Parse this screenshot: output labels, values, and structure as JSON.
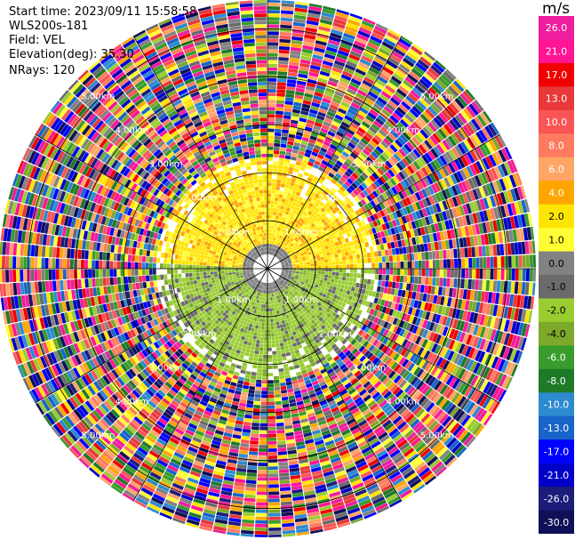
{
  "header": {
    "start_time": "Start time: 2023/09/11 15:58:58",
    "instrument": "WLS200s-181",
    "field": "Field: VEL",
    "elevation": "Elevation(deg): 35.30",
    "nrays": "NRays: 120"
  },
  "chart_data": {
    "type": "heatmap",
    "subtype": "ppi-polar",
    "field": "VEL",
    "units": "m/s",
    "elevation_deg": 35.3,
    "nrays": 120,
    "range_rings_km": [
      1.0,
      2.0,
      3.0,
      4.0,
      5.0
    ],
    "range_ring_labels": [
      "1.00km",
      "2.00km",
      "3.00km",
      "4.00km",
      "5.00km"
    ],
    "max_range_km": 5.6,
    "grid": true,
    "colorbar": {
      "label": "m/s",
      "ticks": [
        "26.0",
        "21.0",
        "17.0",
        "13.0",
        "10.0",
        "8.0",
        "6.0",
        "4.0",
        "2.0",
        "1.0",
        "0.0",
        "-1.0",
        "-2.0",
        "-4.0",
        "-6.0",
        "-8.0",
        "-10.0",
        "-13.0",
        "-17.0",
        "-21.0",
        "-26.0",
        "-30.0"
      ],
      "bins": [
        {
          "color": "#ee1e9e"
        },
        {
          "color": "#ff1493"
        },
        {
          "color": "#f00000"
        },
        {
          "color": "#e8383a"
        },
        {
          "color": "#fa5454"
        },
        {
          "color": "#ff7b60"
        },
        {
          "color": "#ffa566"
        },
        {
          "color": "#ffa500"
        },
        {
          "color": "#ffe400"
        },
        {
          "color": "#ffff33"
        },
        {
          "color": "#828282"
        },
        {
          "color": "#6b6b6b"
        },
        {
          "color": "#9acd32"
        },
        {
          "color": "#7ca82b"
        },
        {
          "color": "#389c2c"
        },
        {
          "color": "#1e7a27"
        },
        {
          "color": "#2c8ad0"
        },
        {
          "color": "#1864c8"
        },
        {
          "color": "#0000ff"
        },
        {
          "color": "#0000c8"
        },
        {
          "color": "#1c1c7a"
        },
        {
          "color": "#101058"
        }
      ]
    },
    "pattern": {
      "inner_core_km": 0.45,
      "signal_region_km": [
        0.45,
        2.3
      ],
      "northern_half": "yellow (+1 to +4 m/s)",
      "southern_half": "green/gray (-1 to -4 m/s)",
      "outer_region": "noise (mixed velocities)"
    }
  }
}
